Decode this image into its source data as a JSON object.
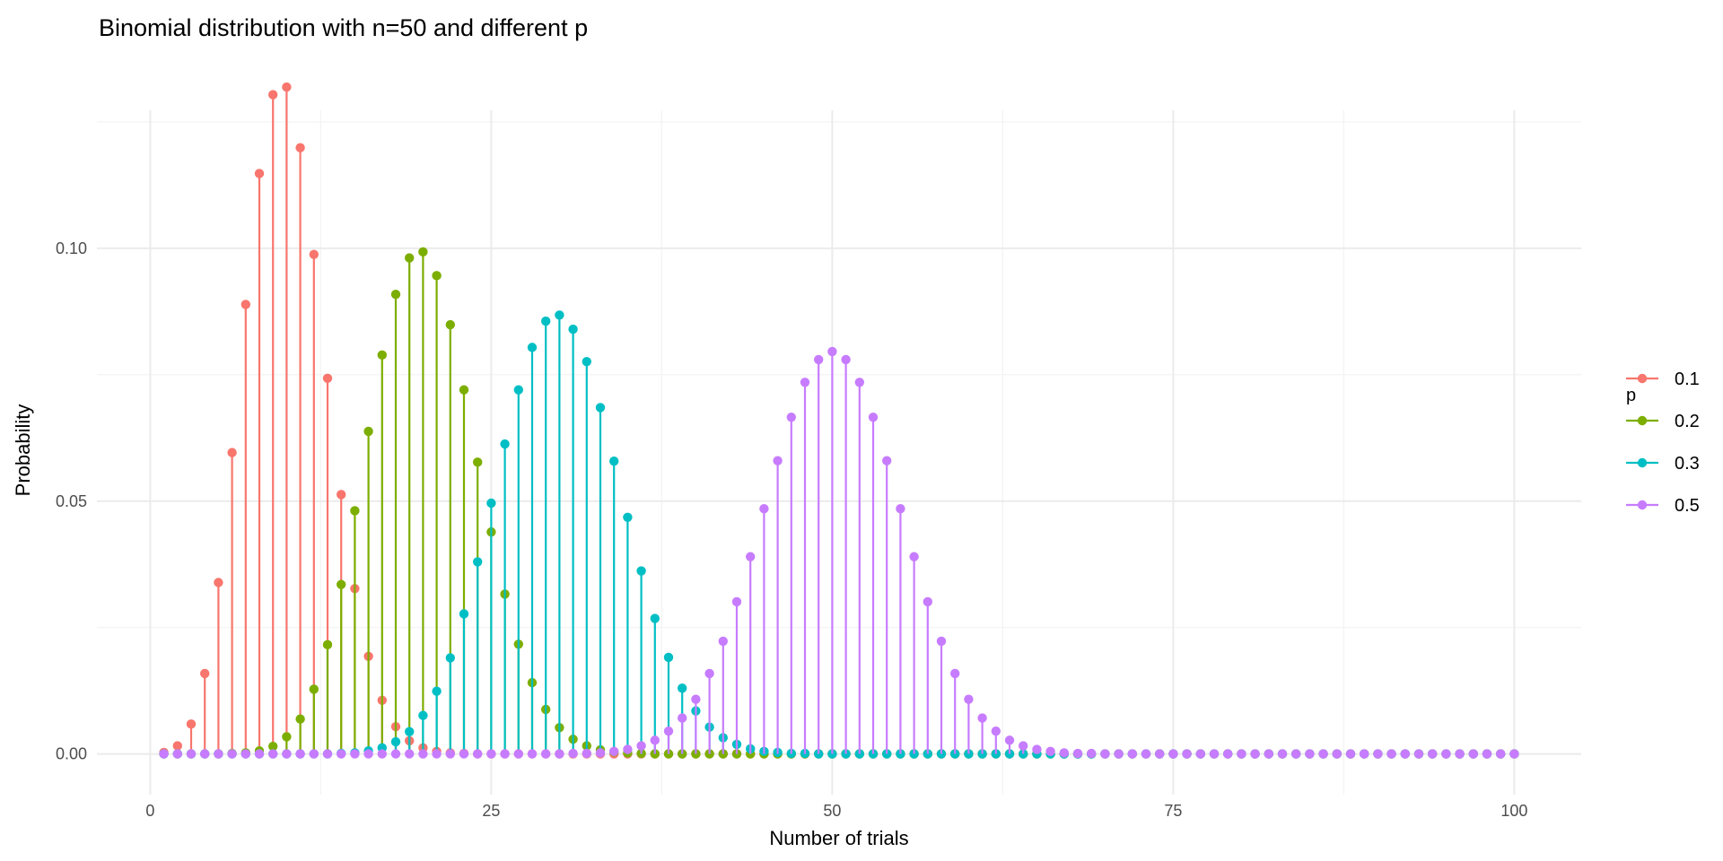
{
  "chart_data": {
    "type": "lollipop",
    "title": "Binomial distribution with n=50 and different p",
    "xlabel": "Number of trials",
    "ylabel": "Probability",
    "xlim": [
      1,
      100
    ],
    "ylim": [
      0,
      0.1319
    ],
    "x_ticks": [
      0,
      25,
      50,
      75,
      100
    ],
    "x_tick_labels": [
      "0",
      "25",
      "50",
      "75",
      "100"
    ],
    "y_ticks": [
      0,
      0.05,
      0.1
    ],
    "y_tick_labels": [
      "0.00",
      "0.05",
      "0.10"
    ],
    "grid": true,
    "legend": {
      "title": "p",
      "position": "right"
    },
    "x_start": 1,
    "series": [
      {
        "name": "0.1",
        "color": "#F8766D",
        "values": [
          0.0003,
          0.0016,
          0.0059,
          0.0159,
          0.0339,
          0.0596,
          0.0889,
          0.1148,
          0.1304,
          0.1319,
          0.1199,
          0.0988,
          0.0743,
          0.0513,
          0.0327,
          0.0193,
          0.0106,
          0.0054,
          0.0026,
          0.0012,
          0.0005,
          0.0002,
          0.0001,
          0,
          0,
          0,
          0,
          0,
          0,
          0,
          0,
          0,
          0,
          0,
          0,
          0,
          0,
          0,
          0,
          0,
          0,
          0,
          0,
          0,
          0,
          0,
          0,
          0,
          0,
          0,
          0,
          0,
          0,
          0,
          0,
          0,
          0,
          0,
          0,
          0,
          0,
          0,
          0,
          0,
          0,
          0,
          0,
          0,
          0,
          0,
          0,
          0,
          0,
          0,
          0,
          0,
          0,
          0,
          0,
          0,
          0,
          0,
          0,
          0,
          0,
          0,
          0,
          0,
          0,
          0,
          0,
          0,
          0,
          0,
          0,
          0,
          0,
          0,
          0,
          0
        ]
      },
      {
        "name": "0.2",
        "color": "#7CAE00",
        "values": [
          0,
          0,
          0,
          0,
          0,
          0.0001,
          0.0002,
          0.0006,
          0.0015,
          0.0034,
          0.0069,
          0.0128,
          0.0216,
          0.0335,
          0.0481,
          0.0638,
          0.0789,
          0.0909,
          0.0981,
          0.0993,
          0.0946,
          0.0849,
          0.072,
          0.0577,
          0.0439,
          0.0316,
          0.0217,
          0.0141,
          0.0088,
          0.0052,
          0.0029,
          0.0016,
          0.0008,
          0.0004,
          0.0002,
          0.0001,
          0,
          0,
          0,
          0,
          0,
          0,
          0,
          0,
          0,
          0,
          0,
          0,
          0,
          0,
          0,
          0,
          0,
          0,
          0,
          0,
          0,
          0,
          0,
          0,
          0,
          0,
          0,
          0,
          0,
          0,
          0,
          0,
          0,
          0,
          0,
          0,
          0,
          0,
          0,
          0,
          0,
          0,
          0,
          0,
          0,
          0,
          0,
          0,
          0,
          0,
          0,
          0,
          0,
          0,
          0,
          0,
          0,
          0,
          0,
          0,
          0,
          0,
          0,
          0
        ]
      },
      {
        "name": "0.3",
        "color": "#00BFC4",
        "values": [
          0,
          0,
          0,
          0,
          0,
          0,
          0,
          0,
          0,
          0,
          0,
          0,
          0,
          0.0001,
          0.0002,
          0.0006,
          0.0012,
          0.0024,
          0.0044,
          0.0076,
          0.0124,
          0.019,
          0.0277,
          0.038,
          0.0496,
          0.0613,
          0.072,
          0.0804,
          0.0856,
          0.0868,
          0.084,
          0.0776,
          0.0685,
          0.0579,
          0.0468,
          0.0362,
          0.0268,
          0.0191,
          0.013,
          0.0085,
          0.0053,
          0.0032,
          0.0019,
          0.001,
          0.0005,
          0.0003,
          0.0001,
          0.0001,
          0,
          0,
          0,
          0,
          0,
          0,
          0,
          0,
          0,
          0,
          0,
          0,
          0,
          0,
          0,
          0,
          0,
          0,
          0,
          0,
          0,
          0,
          0,
          0,
          0,
          0,
          0,
          0,
          0,
          0,
          0,
          0,
          0,
          0,
          0,
          0,
          0,
          0,
          0,
          0,
          0,
          0,
          0,
          0,
          0,
          0,
          0,
          0,
          0,
          0,
          0,
          0
        ]
      },
      {
        "name": "0.5",
        "color": "#C77CFF",
        "values": [
          0,
          0,
          0,
          0,
          0,
          0,
          0,
          0,
          0,
          0,
          0,
          0,
          0,
          0,
          0,
          0,
          0,
          0,
          0,
          0,
          0,
          0,
          0,
          0,
          0,
          0,
          0,
          0,
          0,
          0,
          0.0001,
          0.0001,
          0.0002,
          0.0005,
          0.0009,
          0.0016,
          0.0027,
          0.0045,
          0.0071,
          0.0108,
          0.0159,
          0.0223,
          0.0301,
          0.039,
          0.0485,
          0.058,
          0.0666,
          0.0735,
          0.078,
          0.0796,
          0.078,
          0.0735,
          0.0666,
          0.058,
          0.0485,
          0.039,
          0.0301,
          0.0223,
          0.0159,
          0.0108,
          0.0071,
          0.0045,
          0.0027,
          0.0016,
          0.0009,
          0.0005,
          0.0002,
          0.0001,
          0.0001,
          0,
          0,
          0,
          0,
          0,
          0,
          0,
          0,
          0,
          0,
          0,
          0,
          0,
          0,
          0,
          0,
          0,
          0,
          0,
          0,
          0,
          0,
          0,
          0,
          0,
          0,
          0,
          0,
          0,
          0,
          0
        ]
      }
    ]
  }
}
